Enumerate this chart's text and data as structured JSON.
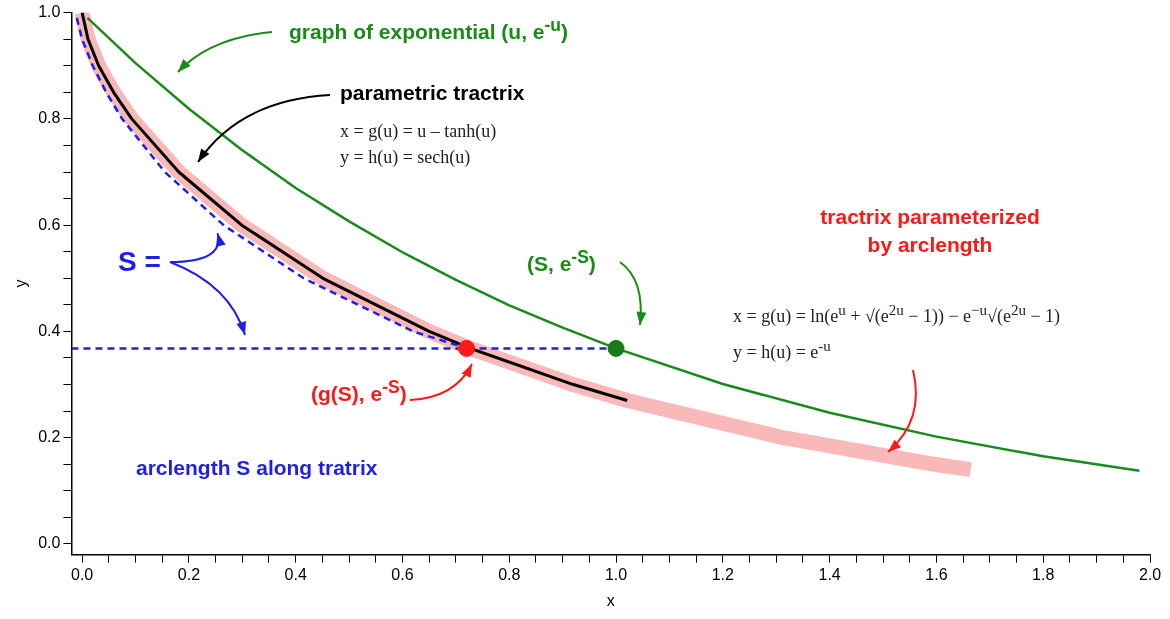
{
  "chart_data": {
    "type": "line",
    "xlabel": "x",
    "ylabel": "y",
    "xlim": [
      -0.02,
      2.0
    ],
    "ylim": [
      -0.02,
      1.0
    ],
    "xticks": [
      {
        "value": 0,
        "label": "0.0"
      },
      {
        "value": 0.05,
        "label": null
      },
      {
        "value": 0.1,
        "label": null
      },
      {
        "value": 0.15,
        "label": null
      },
      {
        "value": 0.2,
        "label": "0.2"
      },
      {
        "value": 0.25,
        "label": null
      },
      {
        "value": 0.3,
        "label": null
      },
      {
        "value": 0.35,
        "label": null
      },
      {
        "value": 0.4,
        "label": "0.4"
      },
      {
        "value": 0.45,
        "label": null
      },
      {
        "value": 0.5,
        "label": null
      },
      {
        "value": 0.55,
        "label": null
      },
      {
        "value": 0.6,
        "label": "0.6"
      },
      {
        "value": 0.65,
        "label": null
      },
      {
        "value": 0.7,
        "label": null
      },
      {
        "value": 0.75,
        "label": null
      },
      {
        "value": 0.8,
        "label": "0.8"
      },
      {
        "value": 0.85,
        "label": null
      },
      {
        "value": 0.9,
        "label": null
      },
      {
        "value": 0.95,
        "label": null
      },
      {
        "value": 1.0,
        "label": "1.0"
      },
      {
        "value": 1.05,
        "label": null
      },
      {
        "value": 1.1,
        "label": null
      },
      {
        "value": 1.15,
        "label": null
      },
      {
        "value": 1.2,
        "label": "1.2"
      },
      {
        "value": 1.25,
        "label": null
      },
      {
        "value": 1.3,
        "label": null
      },
      {
        "value": 1.35,
        "label": null
      },
      {
        "value": 1.4,
        "label": "1.4"
      },
      {
        "value": 1.45,
        "label": null
      },
      {
        "value": 1.5,
        "label": null
      },
      {
        "value": 1.55,
        "label": null
      },
      {
        "value": 1.6,
        "label": "1.6"
      },
      {
        "value": 1.65,
        "label": null
      },
      {
        "value": 1.7,
        "label": null
      },
      {
        "value": 1.75,
        "label": null
      },
      {
        "value": 1.8,
        "label": "1.8"
      },
      {
        "value": 1.85,
        "label": null
      },
      {
        "value": 1.9,
        "label": null
      },
      {
        "value": 1.95,
        "label": null
      },
      {
        "value": 2.0,
        "label": "2.0"
      }
    ],
    "yticks": [
      {
        "value": 0,
        "label": "0.0"
      },
      {
        "value": 0.05,
        "label": null
      },
      {
        "value": 0.1,
        "label": null
      },
      {
        "value": 0.15,
        "label": null
      },
      {
        "value": 0.2,
        "label": "0.2"
      },
      {
        "value": 0.25,
        "label": null
      },
      {
        "value": 0.3,
        "label": null
      },
      {
        "value": 0.35,
        "label": null
      },
      {
        "value": 0.4,
        "label": "0.4"
      },
      {
        "value": 0.45,
        "label": null
      },
      {
        "value": 0.5,
        "label": null
      },
      {
        "value": 0.55,
        "label": null
      },
      {
        "value": 0.6,
        "label": "0.6"
      },
      {
        "value": 0.65,
        "label": null
      },
      {
        "value": 0.7,
        "label": null
      },
      {
        "value": 0.75,
        "label": null
      },
      {
        "value": 0.8,
        "label": "0.8"
      },
      {
        "value": 0.85,
        "label": null
      },
      {
        "value": 0.9,
        "label": null
      },
      {
        "value": 0.95,
        "label": null
      },
      {
        "value": 1.0,
        "label": "1.0"
      }
    ],
    "grid": false,
    "legend": false,
    "marker": "none",
    "series": [
      {
        "color": "#f9b9b9",
        "x": [
          0,
          0.011,
          0.031,
          0.059,
          0.093,
          0.181,
          0.299,
          0.451,
          0.65,
          0.727,
          0.92,
          1.021,
          1.313,
          1.596,
          1.664
        ],
        "values": [
          1,
          0.95,
          0.9,
          0.85,
          0.8,
          0.7,
          0.6,
          0.5,
          0.4,
          0.368,
          0.3,
          0.27,
          0.2,
          0.15,
          0.14
        ]
      },
      {
        "color": "#1a8a1a",
        "x": [
          0.01,
          0.1,
          0.2,
          0.3,
          0.4,
          0.5,
          0.6,
          0.7,
          0.8,
          0.9,
          1.0,
          1.2,
          1.4,
          1.6,
          1.8,
          1.98
        ],
        "values": [
          0.99,
          0.905,
          0.819,
          0.741,
          0.67,
          0.607,
          0.549,
          0.497,
          0.449,
          0.407,
          0.368,
          0.301,
          0.247,
          0.202,
          0.165,
          0.138
        ]
      },
      {
        "color": "#000000",
        "x": [
          0,
          0.011,
          0.031,
          0.059,
          0.093,
          0.181,
          0.299,
          0.451,
          0.65,
          0.727,
          0.92,
          1.021
        ],
        "values": [
          1,
          0.95,
          0.9,
          0.85,
          0.8,
          0.7,
          0.6,
          0.5,
          0.4,
          0.368,
          0.3,
          0.27
        ]
      },
      {
        "color": "#1f1fe6",
        "line_style": "dashed",
        "x": [
          -0.01,
          0.0,
          0.02,
          0.045,
          0.075,
          0.155,
          0.265,
          0.415,
          0.62,
          0.715
        ],
        "values": [
          0.99,
          0.95,
          0.9,
          0.85,
          0.8,
          0.7,
          0.6,
          0.5,
          0.4,
          0.37
        ]
      },
      {
        "color": "#1f1fe6",
        "line_style": "dashed",
        "x": [
          -0.02,
          1.0
        ],
        "values": [
          0.368,
          0.368
        ]
      },
      {
        "type": "scatter",
        "marker": "circle",
        "color": "#ff1a1a",
        "x": [
          0.72
        ],
        "values": [
          0.368
        ]
      },
      {
        "type": "scatter",
        "marker": "circle",
        "color": "#1a7a1a",
        "x": [
          1.0
        ],
        "values": [
          0.368
        ]
      }
    ],
    "annotations": [
      "graph of exponential (u, e$^{-u}$)",
      "parametric tractrix",
      "x = g(u) = u – tanh(u)",
      "y = h(u) = sech(u)",
      {
        "text": "S =",
        "x": 0.265,
        "y": 0.6
      },
      "(S, e$^{-S}$)",
      "tractrix parameterized",
      "by arclength",
      "x = g(u) = ln(e$^{u}$ + √(e$^{2u}$ − 1)) − e$^{−u}$√(e$^{2u}$ − 1)",
      "y = h(u) = e$^{-u}$",
      "(g(S), e$^{-S}$)",
      "arclength S along tratrix"
    ]
  }
}
